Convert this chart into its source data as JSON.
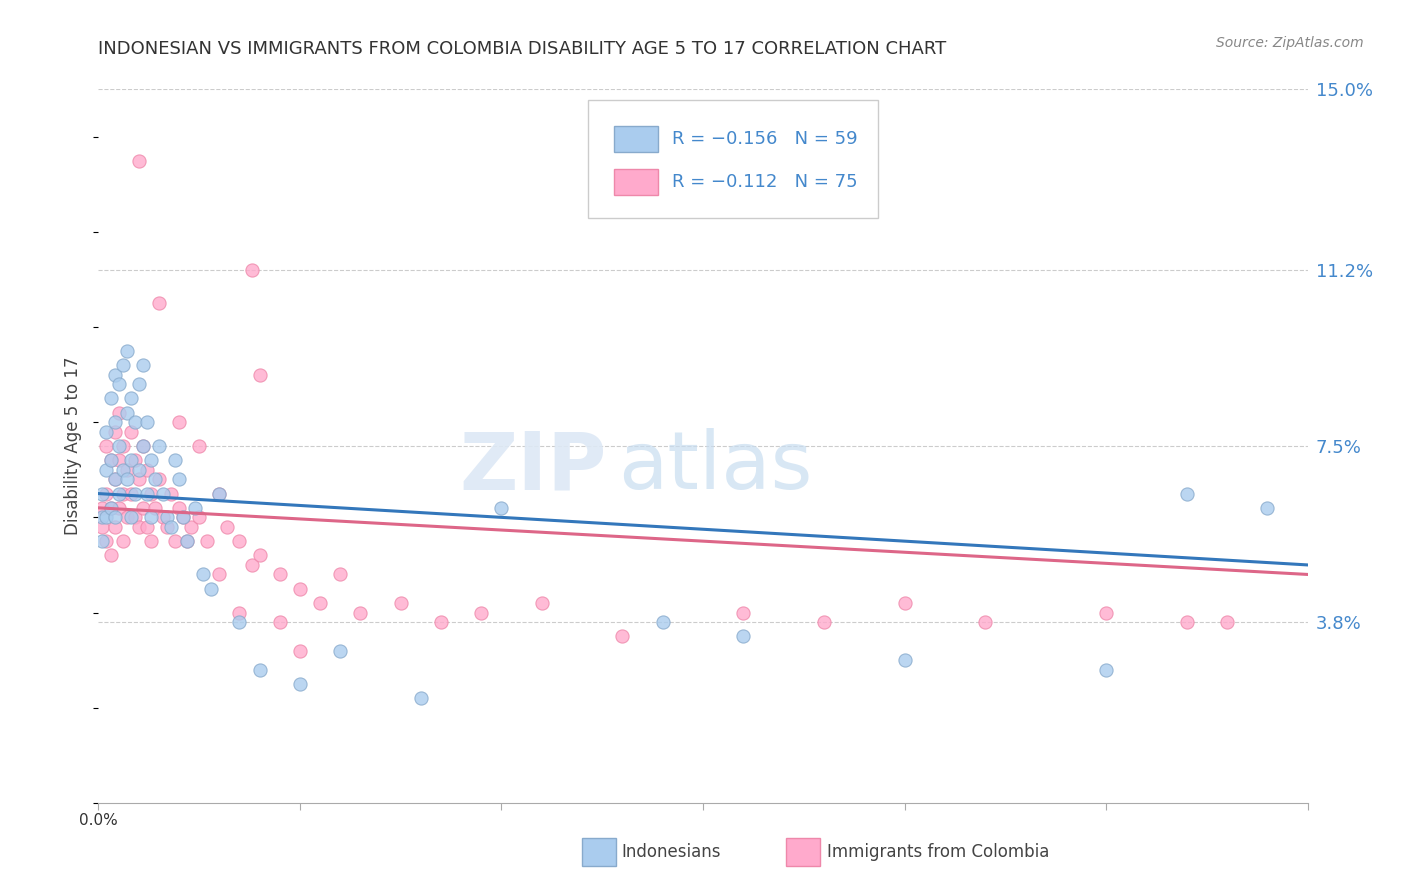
{
  "title": "INDONESIAN VS IMMIGRANTS FROM COLOMBIA DISABILITY AGE 5 TO 17 CORRELATION CHART",
  "source": "Source: ZipAtlas.com",
  "ylabel": "Disability Age 5 to 17",
  "xmin": 0.0,
  "xmax": 0.3,
  "ymin": 0.0,
  "ymax": 0.15,
  "yticks": [
    0.038,
    0.075,
    0.112,
    0.15
  ],
  "ytick_labels": [
    "3.8%",
    "7.5%",
    "11.2%",
    "15.0%"
  ],
  "blue_scatter_color": "#aaccee",
  "blue_edge_color": "#88aacc",
  "pink_scatter_color": "#ffaacc",
  "pink_edge_color": "#ee88aa",
  "blue_line_color": "#3377bb",
  "pink_line_color": "#dd6688",
  "watermark_zip": "ZIP",
  "watermark_atlas": "atlas",
  "title_fontsize": 13,
  "source_fontsize": 10,
  "ytick_fontsize": 13,
  "marker_size": 90,
  "indonesians_x": [
    0.001,
    0.001,
    0.001,
    0.002,
    0.002,
    0.002,
    0.003,
    0.003,
    0.003,
    0.004,
    0.004,
    0.004,
    0.004,
    0.005,
    0.005,
    0.005,
    0.006,
    0.006,
    0.007,
    0.007,
    0.007,
    0.008,
    0.008,
    0.008,
    0.009,
    0.009,
    0.01,
    0.01,
    0.011,
    0.011,
    0.012,
    0.012,
    0.013,
    0.013,
    0.014,
    0.015,
    0.016,
    0.017,
    0.018,
    0.019,
    0.02,
    0.021,
    0.022,
    0.024,
    0.026,
    0.028,
    0.03,
    0.035,
    0.04,
    0.05,
    0.06,
    0.08,
    0.1,
    0.14,
    0.16,
    0.2,
    0.25,
    0.27,
    0.29
  ],
  "indonesians_y": [
    0.065,
    0.06,
    0.055,
    0.078,
    0.07,
    0.06,
    0.085,
    0.072,
    0.062,
    0.09,
    0.08,
    0.068,
    0.06,
    0.088,
    0.075,
    0.065,
    0.092,
    0.07,
    0.095,
    0.082,
    0.068,
    0.085,
    0.072,
    0.06,
    0.08,
    0.065,
    0.088,
    0.07,
    0.092,
    0.075,
    0.08,
    0.065,
    0.072,
    0.06,
    0.068,
    0.075,
    0.065,
    0.06,
    0.058,
    0.072,
    0.068,
    0.06,
    0.055,
    0.062,
    0.048,
    0.045,
    0.065,
    0.038,
    0.028,
    0.025,
    0.032,
    0.022,
    0.062,
    0.038,
    0.035,
    0.03,
    0.028,
    0.065,
    0.062
  ],
  "colombia_x": [
    0.001,
    0.001,
    0.002,
    0.002,
    0.002,
    0.003,
    0.003,
    0.003,
    0.004,
    0.004,
    0.004,
    0.005,
    0.005,
    0.005,
    0.006,
    0.006,
    0.006,
    0.007,
    0.007,
    0.008,
    0.008,
    0.009,
    0.009,
    0.01,
    0.01,
    0.011,
    0.011,
    0.012,
    0.012,
    0.013,
    0.013,
    0.014,
    0.015,
    0.016,
    0.017,
    0.018,
    0.019,
    0.02,
    0.021,
    0.022,
    0.023,
    0.025,
    0.027,
    0.03,
    0.032,
    0.035,
    0.038,
    0.04,
    0.045,
    0.05,
    0.055,
    0.06,
    0.065,
    0.075,
    0.085,
    0.095,
    0.11,
    0.13,
    0.16,
    0.18,
    0.2,
    0.22,
    0.25,
    0.27,
    0.038,
    0.04,
    0.01,
    0.015,
    0.02,
    0.025,
    0.03,
    0.035,
    0.045,
    0.05,
    0.28
  ],
  "colombia_y": [
    0.062,
    0.058,
    0.075,
    0.065,
    0.055,
    0.072,
    0.062,
    0.052,
    0.078,
    0.068,
    0.058,
    0.082,
    0.072,
    0.062,
    0.075,
    0.065,
    0.055,
    0.07,
    0.06,
    0.078,
    0.065,
    0.072,
    0.06,
    0.068,
    0.058,
    0.075,
    0.062,
    0.07,
    0.058,
    0.065,
    0.055,
    0.062,
    0.068,
    0.06,
    0.058,
    0.065,
    0.055,
    0.062,
    0.06,
    0.055,
    0.058,
    0.06,
    0.055,
    0.065,
    0.058,
    0.055,
    0.05,
    0.052,
    0.048,
    0.045,
    0.042,
    0.048,
    0.04,
    0.042,
    0.038,
    0.04,
    0.042,
    0.035,
    0.04,
    0.038,
    0.042,
    0.038,
    0.04,
    0.038,
    0.112,
    0.09,
    0.135,
    0.105,
    0.08,
    0.075,
    0.048,
    0.04,
    0.038,
    0.032,
    0.038
  ]
}
